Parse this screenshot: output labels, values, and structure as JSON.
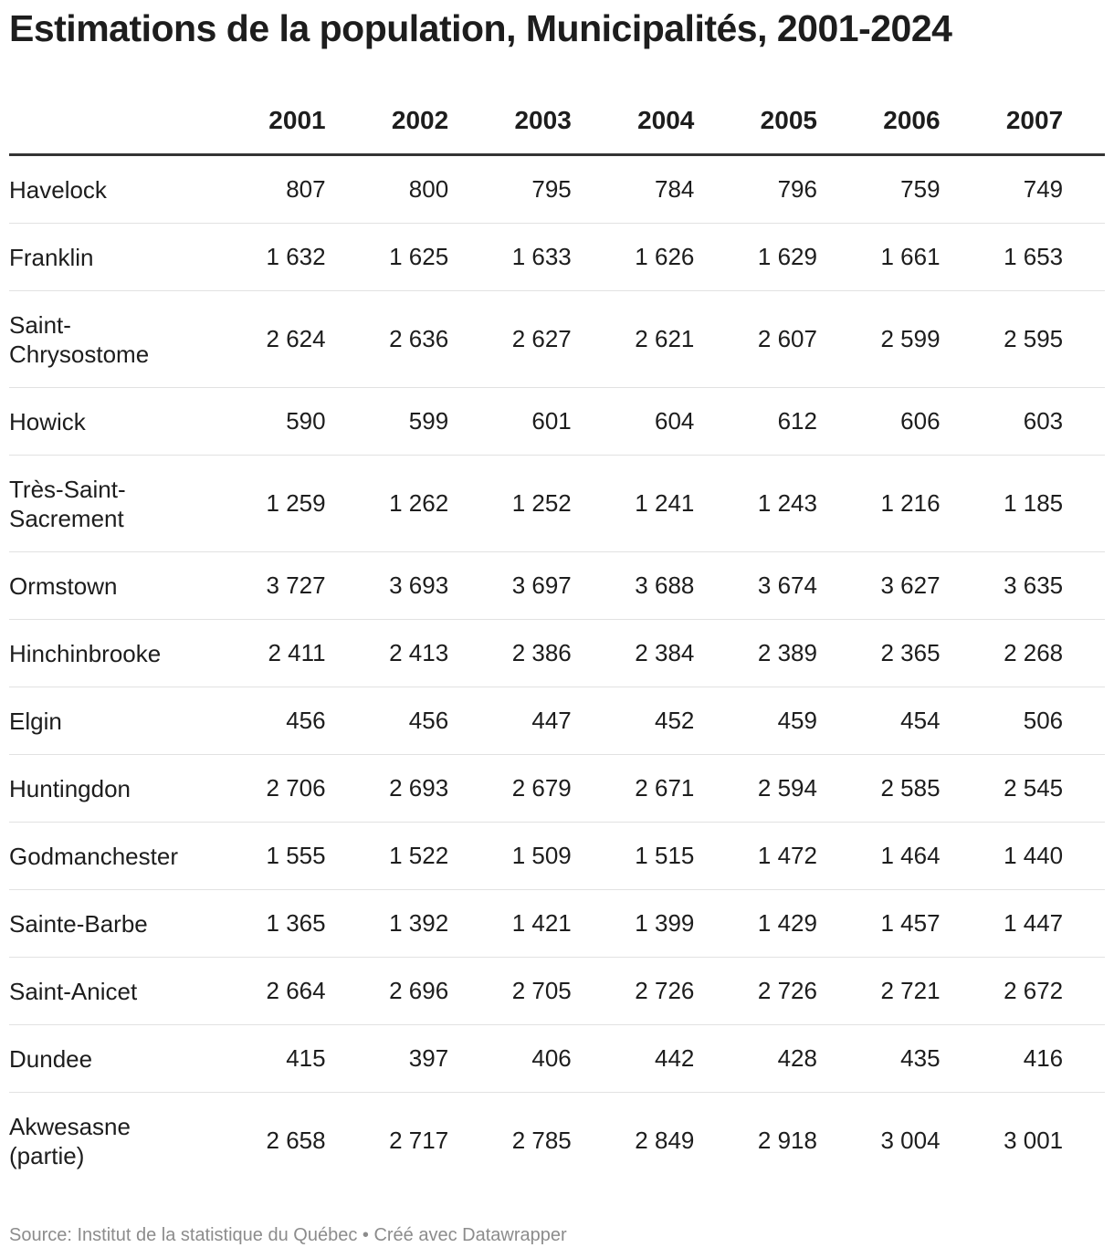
{
  "title": "Estimations de la population, Municipalités, 2001-2024",
  "source": "Source: Institut de la statistique du Québec • Créé avec Datawrapper",
  "chart_data": {
    "type": "table",
    "title": "Estimations de la population, Municipalités, 2001-2024",
    "columns": [
      "2001",
      "2002",
      "2003",
      "2004",
      "2005",
      "2006",
      "2007"
    ],
    "rows": [
      {
        "name": "Havelock",
        "values": [
          "807",
          "800",
          "795",
          "784",
          "796",
          "759",
          "749"
        ]
      },
      {
        "name": "Franklin",
        "values": [
          "1 632",
          "1 625",
          "1 633",
          "1 626",
          "1 629",
          "1 661",
          "1 653"
        ]
      },
      {
        "name": "Saint-\nChrysostome",
        "values": [
          "2 624",
          "2 636",
          "2 627",
          "2 621",
          "2 607",
          "2 599",
          "2 595"
        ]
      },
      {
        "name": "Howick",
        "values": [
          "590",
          "599",
          "601",
          "604",
          "612",
          "606",
          "603"
        ]
      },
      {
        "name": "Très-Saint-\nSacrement",
        "values": [
          "1 259",
          "1 262",
          "1 252",
          "1 241",
          "1 243",
          "1 216",
          "1 185"
        ]
      },
      {
        "name": "Ormstown",
        "values": [
          "3 727",
          "3 693",
          "3 697",
          "3 688",
          "3 674",
          "3 627",
          "3 635"
        ]
      },
      {
        "name": "Hinchinbrooke",
        "values": [
          "2 411",
          "2 413",
          "2 386",
          "2 384",
          "2 389",
          "2 365",
          "2 268"
        ]
      },
      {
        "name": "Elgin",
        "values": [
          "456",
          "456",
          "447",
          "452",
          "459",
          "454",
          "506"
        ]
      },
      {
        "name": "Huntingdon",
        "values": [
          "2 706",
          "2 693",
          "2 679",
          "2 671",
          "2 594",
          "2 585",
          "2 545"
        ]
      },
      {
        "name": "Godmanchester",
        "values": [
          "1 555",
          "1 522",
          "1 509",
          "1 515",
          "1 472",
          "1 464",
          "1 440"
        ]
      },
      {
        "name": "Sainte-Barbe",
        "values": [
          "1 365",
          "1 392",
          "1 421",
          "1 399",
          "1 429",
          "1 457",
          "1 447"
        ]
      },
      {
        "name": "Saint-Anicet",
        "values": [
          "2 664",
          "2 696",
          "2 705",
          "2 726",
          "2 726",
          "2 721",
          "2 672"
        ]
      },
      {
        "name": "Dundee",
        "values": [
          "415",
          "397",
          "406",
          "442",
          "428",
          "435",
          "416"
        ]
      },
      {
        "name": "Akwesasne\n(partie)",
        "values": [
          "2 658",
          "2 717",
          "2 785",
          "2 849",
          "2 918",
          "3 004",
          "3 001"
        ]
      }
    ]
  }
}
